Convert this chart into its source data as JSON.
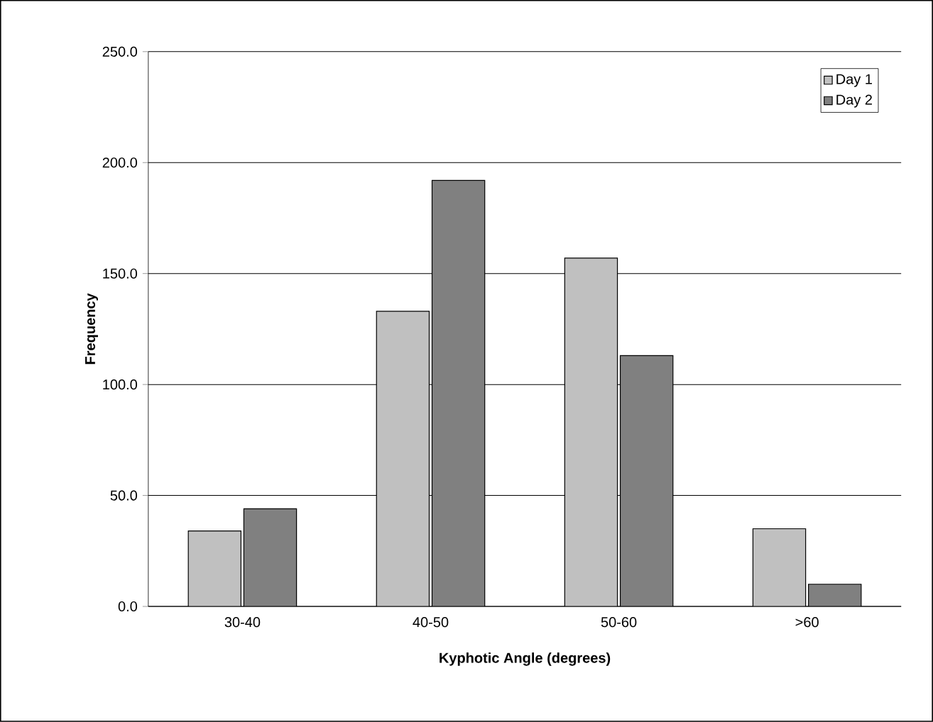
{
  "chart_data": {
    "type": "bar",
    "xlabel": "Kyphotic Angle (degrees)",
    "ylabel": "Frequency",
    "categories": [
      "30-40",
      "40-50",
      "50-60",
      ">60"
    ],
    "series": [
      {
        "name": "Day 1",
        "color": "#c0c0c0",
        "values": [
          34,
          133,
          157,
          35
        ]
      },
      {
        "name": "Day 2",
        "color": "#808080",
        "values": [
          44,
          192,
          113,
          10
        ]
      }
    ],
    "ylim": [
      0,
      250
    ],
    "yticks": [
      {
        "value": 0,
        "label": "0.0"
      },
      {
        "value": 50,
        "label": "50.0"
      },
      {
        "value": 100,
        "label": "100.0"
      },
      {
        "value": 150,
        "label": "150.0"
      },
      {
        "value": 200,
        "label": "200.0"
      },
      {
        "value": 250,
        "label": "250.0"
      }
    ],
    "grid": "y",
    "legend": "top right"
  }
}
